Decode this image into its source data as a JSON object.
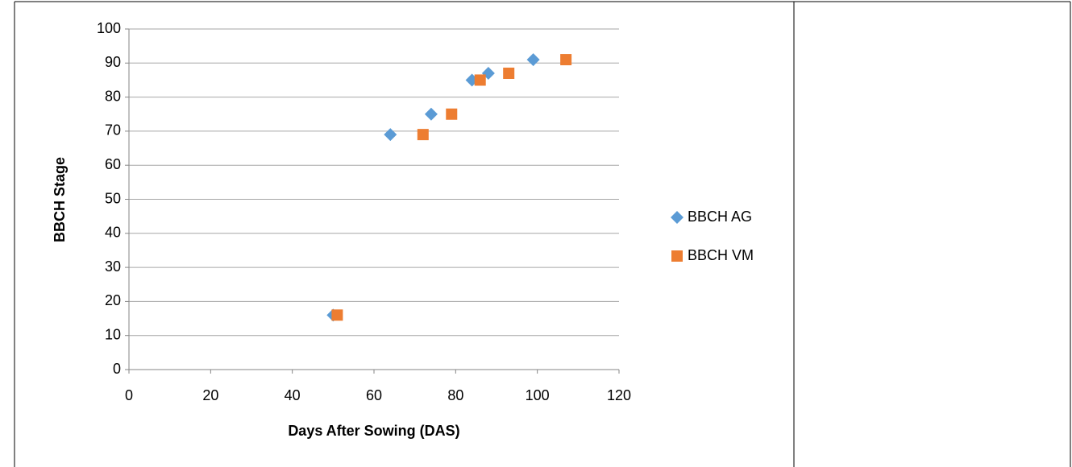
{
  "chart_data": {
    "type": "scatter",
    "x_label": "Days After Sowing (DAS)",
    "y_label": "BBCH Stage",
    "series": [
      {
        "name": "BBCH AG",
        "color": "#5b9bd5",
        "marker": "diamond",
        "x": [
          50,
          64,
          74,
          84,
          88,
          99
        ],
        "values": [
          16,
          69,
          75,
          85,
          87,
          91
        ]
      },
      {
        "name": "BBCH VM",
        "color": "#ed7d31",
        "marker": "square",
        "x": [
          51,
          72,
          79,
          86,
          93,
          107
        ],
        "values": [
          16,
          69,
          75,
          85,
          87,
          91
        ]
      }
    ],
    "xlim": [
      0,
      120
    ],
    "xticks": [
      0,
      20,
      40,
      60,
      80,
      100,
      120
    ],
    "ylim": [
      0,
      100
    ],
    "yticks": [
      0,
      10,
      20,
      30,
      40,
      50,
      60,
      70,
      80,
      90,
      100
    ],
    "grid": true,
    "legend": "right"
  }
}
